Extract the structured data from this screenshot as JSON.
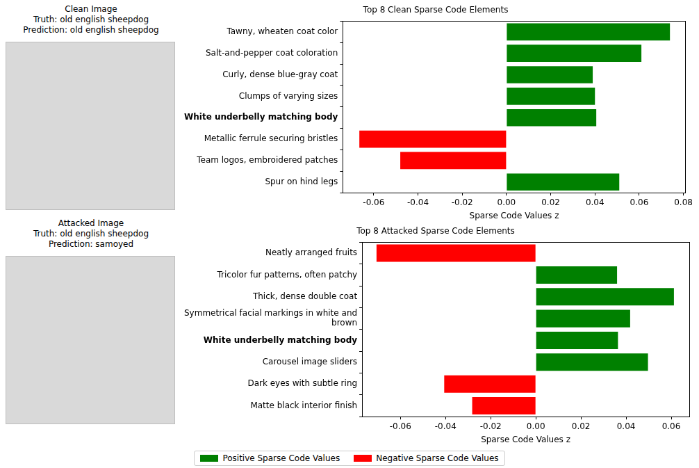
{
  "images": [
    {
      "title": "Clean Image",
      "truth": "Truth: old english sheepdog",
      "prediction": "Prediction: old english sheepdog"
    },
    {
      "title": "Attacked Image",
      "truth": "Truth: old english sheepdog",
      "prediction": "Prediction: samoyed"
    }
  ],
  "chart_data": [
    {
      "type": "bar",
      "orientation": "horizontal",
      "title": "Top 8 Clean Sparse Code Elements",
      "xlabel": "Sparse Code Values z",
      "categories": [
        "Tawny, wheaten coat color",
        "Salt-and-pepper coat coloration",
        "Curly, dense blue-gray coat",
        "Clumps of varying sizes",
        "White underbelly matching body",
        "Metallic ferrule securing bristles",
        "Team logos, embroidered patches",
        "Spur on hind legs"
      ],
      "series": [
        {
          "name": "Positive Sparse Code Values",
          "color": "#008000",
          "values": [
            0.0739,
            0.061,
            0.039,
            0.04,
            0.0406,
            null,
            null,
            0.051
          ]
        },
        {
          "name": "Negative Sparse Code Values",
          "color": "#ff0000",
          "values": [
            null,
            null,
            null,
            null,
            null,
            -0.0665,
            -0.048,
            null
          ]
        }
      ],
      "xlim": [
        -0.074,
        0.081
      ],
      "xticks": [
        -0.06,
        -0.04,
        -0.02,
        {
          "value": 0,
          "label": "0.00"
        },
        0.02,
        0.04,
        0.06,
        0.08
      ]
    },
    {
      "type": "bar",
      "orientation": "horizontal",
      "title": "Top 8 Attacked Sparse Code Elements",
      "xlabel": "Sparse Code Values z",
      "categories": [
        "Neatly arranged fruits",
        "Tricolor fur patterns, often patchy",
        "Thick, dense double coat",
        "Symmetrical facial markings in white and brown",
        "White underbelly matching body",
        "Carousel image sliders",
        "Dark eyes with subtle ring",
        "Matte black interior finish"
      ],
      "series": [
        {
          "name": "Positive Sparse Code Values",
          "color": "#008000",
          "values": [
            null,
            0.036,
            0.0612,
            0.0418,
            0.0364,
            0.0497,
            null,
            null
          ]
        },
        {
          "name": "Negative Sparse Code Values",
          "color": "#ff0000",
          "values": [
            -0.0706,
            null,
            null,
            null,
            null,
            null,
            -0.0406,
            -0.0282
          ]
        }
      ],
      "xlim": [
        -0.077,
        0.068
      ],
      "xticks": [
        -0.06,
        -0.04,
        -0.02,
        {
          "value": 0,
          "label": "0.00"
        },
        0.02,
        0.04,
        0.06
      ],
      "legend": "bottom"
    }
  ]
}
